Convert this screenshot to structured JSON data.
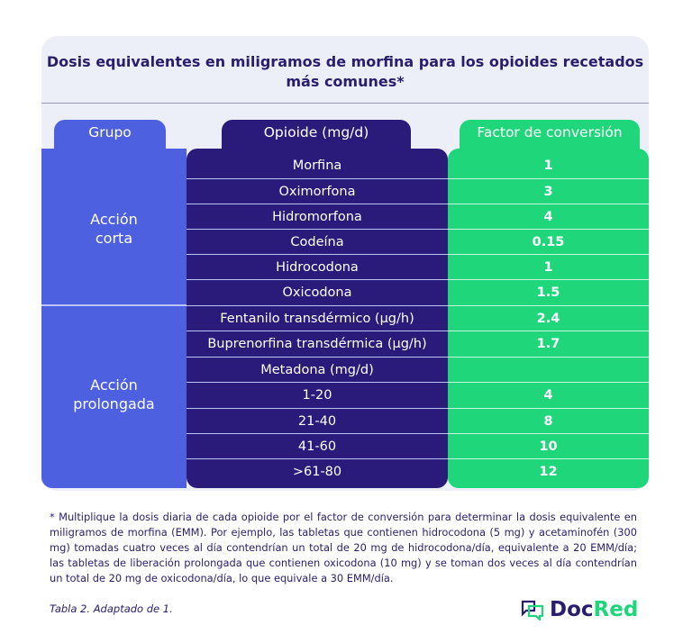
{
  "title": "Dosis equivalentes en miligramos de morfina para los opioides recetados más comunes*",
  "headers": {
    "group": "Grupo",
    "opioid": "Opioide (mg/d)",
    "factor": "Factor de conversión"
  },
  "groups": [
    {
      "label": "Acción corta",
      "rows": [
        [
          "Morfina",
          "1"
        ],
        [
          "Oximorfona",
          "3"
        ],
        [
          "Hidromorfona",
          "4"
        ],
        [
          "Codeína",
          "0.15"
        ],
        [
          "Hidrocodona",
          "1"
        ],
        [
          "Oxicodona",
          "1.5"
        ]
      ]
    },
    {
      "label": "Acción prolongada",
      "rows": [
        [
          "Fentanilo transdérmico (µg/h)",
          "2.4"
        ],
        [
          "Buprenorfina transdérmica (µg/h)",
          "1.7"
        ],
        [
          "Metadona (mg/d)",
          ""
        ],
        [
          "1-20",
          "4"
        ],
        [
          "21-40",
          "8"
        ],
        [
          "41-60",
          "10"
        ],
        [
          ">61-80",
          "12"
        ]
      ]
    }
  ],
  "note": "* Multiplique la dosis diaria de cada opioide por el factor de conversión para determinar la dosis equivalente en miligramos de morfina (EMM). Por ejemplo, las tabletas que contienen hidrocodona (5 mg) y acetaminofén (300 mg) tomadas cuatro veces al día contendrían un total de 20 mg de hidrocodona/día, equivalente a 20 EMM/día; las tabletas de liberación prolongada que contienen oxicodona (10 mg) y se toman dos veces al día contendrían un total de 20 mg de oxicodona/día, lo que equivale a 30 EMM/día.",
  "caption": "Tabla 2. Adaptado de 1.",
  "logo": {
    "doc": "Doc",
    "red": "Red",
    "icon": "chat-bubbles-icon"
  },
  "colors": {
    "group": "#4d61e0",
    "opioid": "#2a1b7a",
    "factor": "#1fd67b",
    "text": "#2a1d6e"
  }
}
